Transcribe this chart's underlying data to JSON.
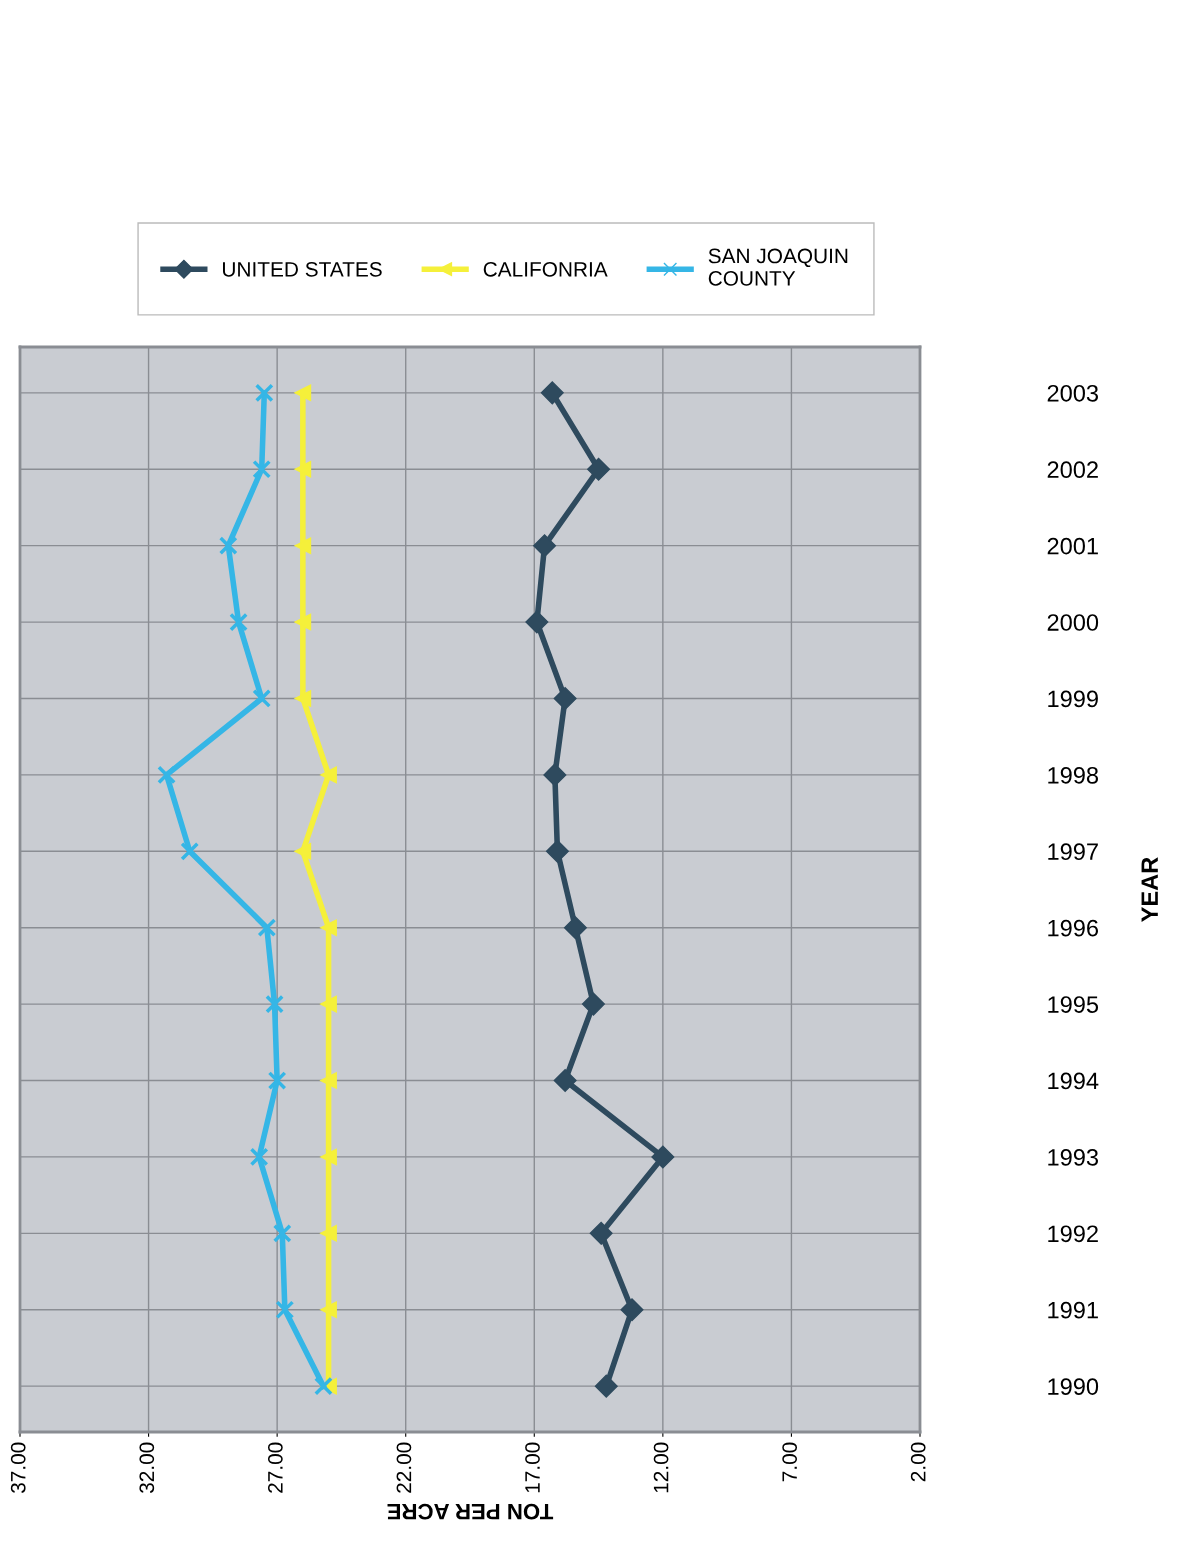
{
  "chart_data": {
    "type": "line",
    "orientation": "horizontal",
    "xlabel": "TON PER ACRE",
    "ylabel": "YEAR",
    "categories": [
      "2003",
      "2002",
      "2001",
      "2000",
      "1999",
      "1998",
      "1997",
      "1996",
      "1995",
      "1994",
      "1993",
      "1992",
      "1991",
      "1990"
    ],
    "series": [
      {
        "name": "UNITED STATES",
        "color": "#2e4a5e",
        "marker": "diamond",
        "values": [
          16.3,
          14.5,
          16.6,
          16.9,
          15.8,
          16.2,
          16.1,
          15.4,
          14.7,
          15.8,
          12.0,
          14.4,
          13.2,
          14.2
        ]
      },
      {
        "name": "CALIFONRIA",
        "color": "#f5f03a",
        "marker": "triangle",
        "values": [
          26.0,
          26.0,
          26.0,
          26.0,
          26.0,
          25.0,
          26.0,
          25.0,
          25.0,
          25.0,
          25.0,
          25.0,
          25.0,
          25.0
        ]
      },
      {
        "name": "SAN JOAQUIN\nCOUNTY",
        "color": "#35b6e6",
        "marker": "cross",
        "values": [
          27.5,
          27.6,
          28.9,
          28.5,
          27.6,
          31.3,
          30.4,
          27.4,
          27.1,
          27.0,
          27.7,
          26.8,
          26.7,
          25.2
        ]
      }
    ],
    "xlim": [
      37,
      2
    ],
    "xticks": [
      {
        "value": 37,
        "label": "37.00"
      },
      {
        "value": 32,
        "label": "32.00"
      },
      {
        "value": 27,
        "label": "27.00"
      },
      {
        "value": 22,
        "label": "22.00"
      },
      {
        "value": 17,
        "label": "17.00"
      },
      {
        "value": 12,
        "label": "12.00"
      },
      {
        "value": 7,
        "label": "7.00"
      },
      {
        "value": 2,
        "label": "2.00"
      }
    ],
    "grid": true,
    "legend": "top"
  }
}
